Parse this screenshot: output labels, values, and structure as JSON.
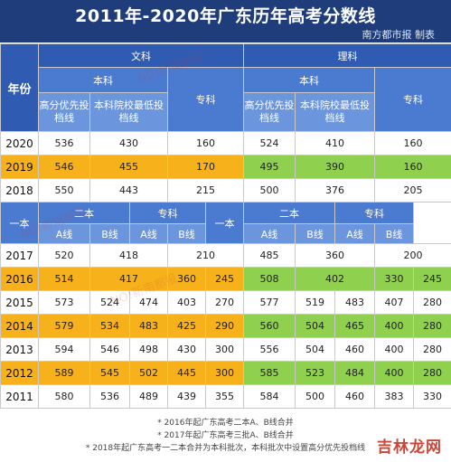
{
  "header": {
    "title": "2011年-2020年广东历年高考分数线",
    "source": "南方都市报 制表"
  },
  "table": {
    "year_label": "年份",
    "wenke": "文科",
    "like": "理科",
    "benke": "本科",
    "zhuanke": "专科",
    "gaofen": "高分优先投档线",
    "benke_min": "本科院校最低投档线",
    "yiben": "一本",
    "erben": "二本",
    "a_line": "A线",
    "b_line": "B线",
    "top_rows": [
      {
        "year": "2020",
        "w1": "536",
        "w2": "430",
        "w3": "160",
        "l1": "524",
        "l2": "410",
        "l3": "160"
      },
      {
        "year": "2019",
        "w1": "546",
        "w2": "455",
        "w3": "170",
        "l1": "495",
        "l2": "390",
        "l3": "160"
      },
      {
        "year": "2018",
        "w1": "550",
        "w2": "443",
        "w3": "215",
        "l1": "500",
        "l2": "376",
        "l3": "205"
      }
    ],
    "bottom_rows": [
      {
        "year": "2017",
        "w_yiben": "520",
        "w_erben": "418",
        "w_zhuan": "210",
        "l_yiben": "485",
        "l_erben": "360",
        "l_zhuan": "200"
      },
      {
        "year": "2016",
        "w_yiben": "514",
        "w_erben": "417",
        "w_za": "360",
        "w_zb": "245",
        "l_yiben": "508",
        "l_erben": "402",
        "l_za": "330",
        "l_zb": "245"
      },
      {
        "year": "2015",
        "w_yiben": "573",
        "w_ea": "524",
        "w_eb": "474",
        "w_za": "403",
        "w_zb": "270",
        "l_yiben": "577",
        "l_ea": "519",
        "l_eb": "483",
        "l_za": "407",
        "l_zb": "280"
      },
      {
        "year": "2014",
        "w_yiben": "579",
        "w_ea": "534",
        "w_eb": "483",
        "w_za": "425",
        "w_zb": "290",
        "l_yiben": "560",
        "l_ea": "504",
        "l_eb": "465",
        "l_za": "400",
        "l_zb": "280"
      },
      {
        "year": "2013",
        "w_yiben": "594",
        "w_ea": "546",
        "w_eb": "498",
        "w_za": "430",
        "w_zb": "300",
        "l_yiben": "556",
        "l_ea": "504",
        "l_eb": "460",
        "l_za": "400",
        "l_zb": "280"
      },
      {
        "year": "2012",
        "w_yiben": "589",
        "w_ea": "545",
        "w_eb": "502",
        "w_za": "445",
        "w_zb": "300",
        "l_yiben": "585",
        "l_ea": "523",
        "l_eb": "484",
        "l_za": "400",
        "l_zb": "280"
      },
      {
        "year": "2011",
        "w_yiben": "580",
        "w_ea": "536",
        "w_eb": "489",
        "w_za": "439",
        "w_zb": "355",
        "l_yiben": "584",
        "l_ea": "500",
        "l_eb": "460",
        "l_za": "383",
        "l_zb": "330"
      }
    ]
  },
  "notes": [
    "* 2016年起广东高考二本A、B线合并",
    "* 2017年起广东高考三批A、B线合并",
    "* 2018年起广东高考一二本合并为本科批次，本科批次中设置高分优先投档线"
  ],
  "watermark": "NO!新南都报",
  "brand": "吉林龙网",
  "colors": {
    "header_bg": "#1f3d7a",
    "highlight_orange": "#f7b21b",
    "highlight_green": "#8fd14f",
    "header_blue": "#2f5bb3"
  }
}
